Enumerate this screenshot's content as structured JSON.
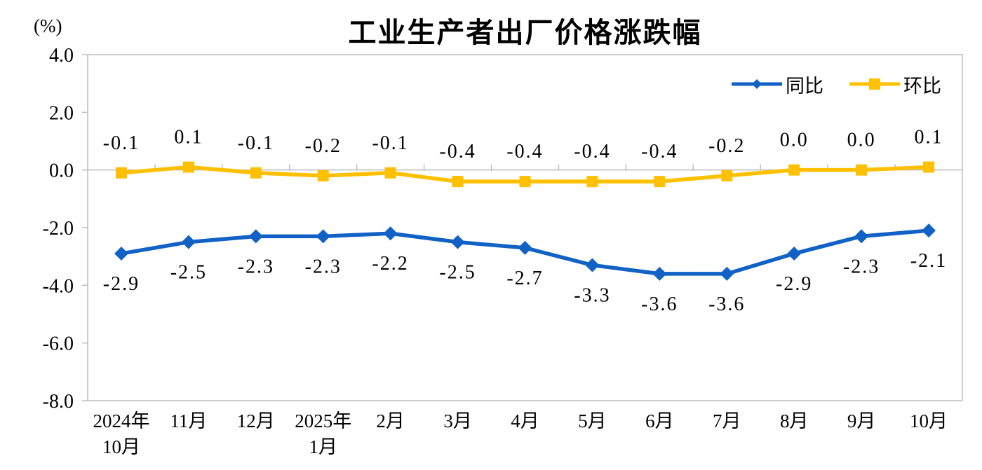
{
  "chart_data": {
    "type": "line",
    "title": "工业生产者出厂价格涨跌幅",
    "unit": "(%)",
    "categories": [
      "2024年\n10月",
      "11月",
      "12月",
      "2025年\n1月",
      "2月",
      "3月",
      "4月",
      "5月",
      "6月",
      "7月",
      "8月",
      "9月",
      "10月"
    ],
    "series": [
      {
        "name": "同比",
        "color": "#1262C6",
        "marker": "diamond",
        "values": [
          -2.9,
          -2.5,
          -2.3,
          -2.3,
          -2.2,
          -2.5,
          -2.7,
          -3.3,
          -3.6,
          -3.6,
          -2.9,
          -2.3,
          -2.1
        ],
        "labels": [
          "-2.9",
          "-2.5",
          "-2.3",
          "-2.3",
          "-2.2",
          "-2.5",
          "-2.7",
          "-3.3",
          "-3.6",
          "-3.6",
          "-2.9",
          "-2.3",
          "-2.1"
        ]
      },
      {
        "name": "环比",
        "color": "#FFC000",
        "marker": "square",
        "values": [
          -0.1,
          0.1,
          -0.1,
          -0.2,
          -0.1,
          -0.4,
          -0.4,
          -0.4,
          -0.4,
          -0.2,
          0.0,
          0.0,
          0.1
        ],
        "labels": [
          "-0.1",
          "0.1",
          "-0.1",
          "-0.2",
          "-0.1",
          "-0.4",
          "-0.4",
          "-0.4",
          "-0.4",
          "-0.2",
          "0.0",
          "0.0",
          "0.1"
        ]
      }
    ],
    "ylim": [
      -8,
      4
    ],
    "yticks": [
      4,
      2,
      0,
      -2,
      -4,
      -6,
      -8
    ],
    "ytick_labels": [
      "4.0",
      "2.0",
      "0.0",
      "-2.0",
      "-4.0",
      "-6.0",
      "-8.0"
    ],
    "grid": "zero-line-only",
    "legend_position": "top-right-inside",
    "axis_color": "#BDBDBD",
    "text_color": "#000000"
  }
}
